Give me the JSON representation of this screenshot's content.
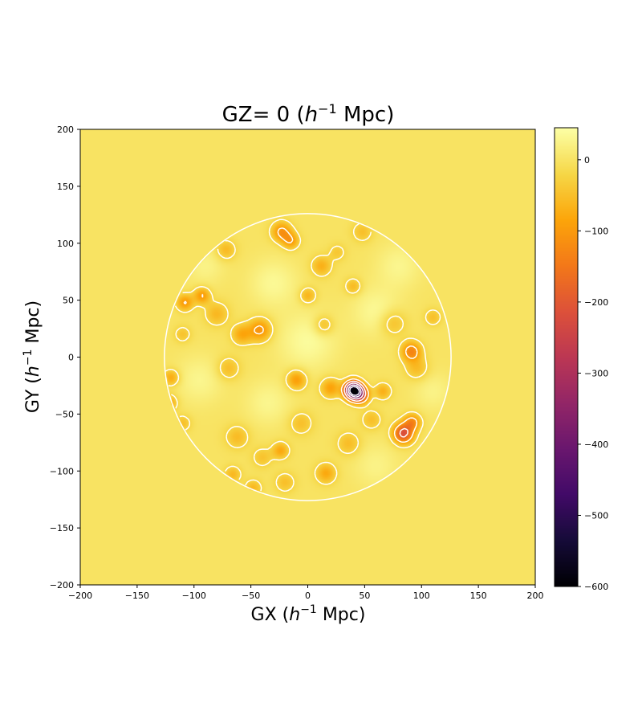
{
  "chart_data": {
    "type": "heatmap",
    "title": {
      "prefix": "GZ= 0 (",
      "var": "h",
      "sup": "−1",
      "suffix": " Mpc)"
    },
    "xlabel": {
      "prefix": "GX (",
      "var": "h",
      "sup": "−1",
      "suffix": " Mpc)"
    },
    "ylabel": {
      "prefix": "GY (",
      "var": "h",
      "sup": "−1",
      "suffix": " Mpc)"
    },
    "xlim": [
      -200,
      200
    ],
    "ylim": [
      -200,
      200
    ],
    "x_ticks": [
      -200,
      -150,
      -100,
      -50,
      0,
      50,
      100,
      150,
      200
    ],
    "x_tick_labels": [
      "−200",
      "−150",
      "−100",
      "−50",
      "0",
      "50",
      "100",
      "150",
      "200"
    ],
    "y_ticks": [
      -200,
      -150,
      -100,
      -50,
      0,
      50,
      100,
      150,
      200
    ],
    "y_tick_labels": [
      "−200",
      "−150",
      "−100",
      "−50",
      "0",
      "50",
      "100",
      "150",
      "200"
    ],
    "colormap": "inferno",
    "colorbar": {
      "range": [
        -600,
        45
      ],
      "ticks": [
        -600,
        -500,
        -400,
        -300,
        -200,
        -100,
        0
      ],
      "tick_labels": [
        "−600",
        "−500",
        "−400",
        "−300",
        "−200",
        "−100",
        "0"
      ]
    },
    "background_value": 0,
    "survey_region": {
      "shape": "circle",
      "center": [
        0,
        0
      ],
      "radius": 126
    },
    "contours": {
      "color": "#ffffff",
      "solid_level": 0,
      "dashed_levels": "negative"
    },
    "features": [
      {
        "name": "deepest trough",
        "x": 40,
        "y": -29,
        "value": -600,
        "spread": 5
      },
      {
        "name": "trough",
        "x": 46,
        "y": -33,
        "value": -230,
        "spread": 5
      },
      {
        "name": "trough",
        "x": 84,
        "y": -67,
        "value": -220,
        "spread": 6
      },
      {
        "name": "trough",
        "x": 92,
        "y": -57,
        "value": -120,
        "spread": 5
      },
      {
        "name": "trough",
        "x": 91,
        "y": 5,
        "value": -130,
        "spread": 6
      },
      {
        "name": "trough",
        "x": -42,
        "y": 24,
        "value": -110,
        "spread": 7
      },
      {
        "name": "trough",
        "x": -23,
        "y": 110,
        "value": -110,
        "spread": 6
      },
      {
        "name": "trough",
        "x": -15,
        "y": 102,
        "value": -90,
        "spread": 5
      },
      {
        "name": "trough",
        "x": -93,
        "y": 54,
        "value": -100,
        "spread": 5
      },
      {
        "name": "trough",
        "x": -108,
        "y": 48,
        "value": -100,
        "spread": 5
      },
      {
        "name": "trough",
        "x": -10,
        "y": -20,
        "value": -100,
        "spread": 6
      },
      {
        "name": "trough",
        "x": 20,
        "y": -27,
        "value": -90,
        "spread": 6
      },
      {
        "name": "trough",
        "x": -58,
        "y": 20,
        "value": -80,
        "spread": 6
      },
      {
        "name": "trough",
        "x": -120,
        "y": -18,
        "value": -80,
        "spread": 5
      },
      {
        "name": "trough",
        "x": -122,
        "y": -40,
        "value": -80,
        "spread": 5
      },
      {
        "name": "trough",
        "x": 66,
        "y": -30,
        "value": -70,
        "spread": 5
      },
      {
        "name": "trough",
        "x": -24,
        "y": -82,
        "value": -80,
        "spread": 5
      },
      {
        "name": "trough",
        "x": 16,
        "y": -102,
        "value": -80,
        "spread": 6
      },
      {
        "name": "trough",
        "x": -48,
        "y": -115,
        "value": -60,
        "spread": 5
      },
      {
        "name": "trough",
        "x": -66,
        "y": -103,
        "value": -60,
        "spread": 5
      },
      {
        "name": "trough",
        "x": 12,
        "y": 80,
        "value": -70,
        "spread": 6
      },
      {
        "name": "trough",
        "x": 40,
        "y": 62,
        "value": -60,
        "spread": 5
      },
      {
        "name": "trough",
        "x": 0,
        "y": 54,
        "value": -70,
        "spread": 5
      },
      {
        "name": "trough",
        "x": -72,
        "y": 94,
        "value": -60,
        "spread": 6
      },
      {
        "name": "trough",
        "x": -80,
        "y": 38,
        "value": -60,
        "spread": 7
      },
      {
        "name": "trough",
        "x": 14,
        "y": 28,
        "value": -60,
        "spread": 6
      },
      {
        "name": "trough",
        "x": 75,
        "y": 30,
        "value": -55,
        "spread": 8
      },
      {
        "name": "trough",
        "x": 96,
        "y": -10,
        "value": -55,
        "spread": 7
      },
      {
        "name": "trough",
        "x": -70,
        "y": -10,
        "value": -55,
        "spread": 7
      },
      {
        "name": "trough",
        "x": -62,
        "y": -70,
        "value": -55,
        "spread": 7
      },
      {
        "name": "trough",
        "x": 36,
        "y": -76,
        "value": -55,
        "spread": 7
      },
      {
        "name": "trough",
        "x": -6,
        "y": -58,
        "value": -50,
        "spread": 7
      },
      {
        "name": "trough",
        "x": -110,
        "y": -58,
        "value": -50,
        "spread": 5
      },
      {
        "name": "trough",
        "x": -20,
        "y": -110,
        "value": -50,
        "spread": 6
      },
      {
        "name": "trough",
        "x": 48,
        "y": 110,
        "value": -50,
        "spread": 6
      },
      {
        "name": "trough",
        "x": 110,
        "y": 35,
        "value": -50,
        "spread": 5
      },
      {
        "name": "trough",
        "x": -110,
        "y": 20,
        "value": -45,
        "spread": 5
      },
      {
        "name": "trough",
        "x": 56,
        "y": -55,
        "value": -50,
        "spread": 6
      },
      {
        "name": "trough",
        "x": -40,
        "y": -88,
        "value": -45,
        "spread": 6
      },
      {
        "name": "trough",
        "x": 26,
        "y": 92,
        "value": -40,
        "spread": 5
      },
      {
        "name": "peak",
        "x": 0,
        "y": 14,
        "value": 40,
        "spread": 18
      },
      {
        "name": "peak",
        "x": 60,
        "y": 40,
        "value": 35,
        "spread": 15
      },
      {
        "name": "peak",
        "x": -30,
        "y": 65,
        "value": 35,
        "spread": 15
      },
      {
        "name": "peak",
        "x": -95,
        "y": -20,
        "value": 30,
        "spread": 15
      },
      {
        "name": "peak",
        "x": 80,
        "y": 80,
        "value": 30,
        "spread": 14
      },
      {
        "name": "peak",
        "x": -35,
        "y": -40,
        "value": 30,
        "spread": 14
      },
      {
        "name": "peak",
        "x": 60,
        "y": -95,
        "value": 25,
        "spread": 14
      },
      {
        "name": "peak",
        "x": -90,
        "y": 80,
        "value": 25,
        "spread": 12
      },
      {
        "name": "peak",
        "x": 110,
        "y": -30,
        "value": 25,
        "spread": 12
      }
    ]
  }
}
